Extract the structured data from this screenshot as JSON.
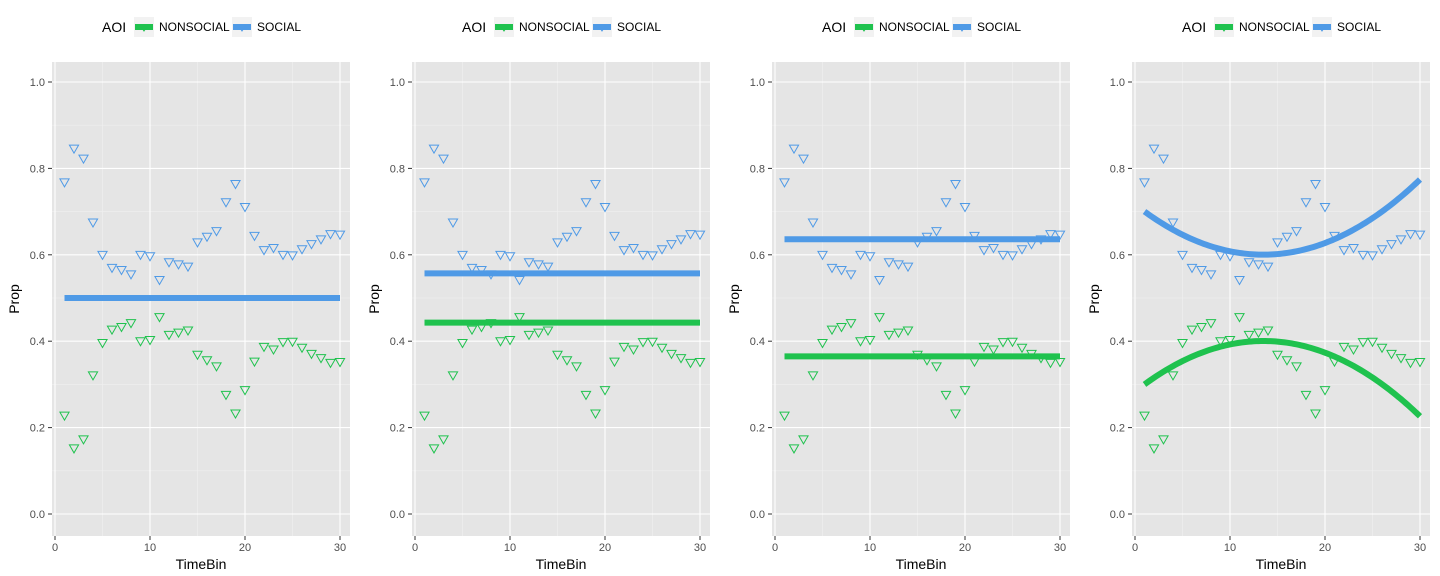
{
  "colors": {
    "nonsocial": "#1fc24e",
    "social": "#4f9ae6",
    "panel_bg": "#e5e5e5",
    "grid_major": "#ffffff",
    "grid_minor": "#f0f0f0"
  },
  "legend": {
    "title": "AOI",
    "items": [
      {
        "label": "NONSOCIAL",
        "key": "nonsocial"
      },
      {
        "label": "SOCIAL",
        "key": "social"
      }
    ]
  },
  "chart_data": [
    {
      "type": "scatter",
      "xlabel": "TimeBin",
      "ylabel": "Prop",
      "xlim": [
        0,
        31
      ],
      "ylim": [
        0,
        1
      ],
      "x_ticks": [
        0,
        10,
        20,
        30
      ],
      "y_ticks": [
        0.0,
        0.2,
        0.4,
        0.6,
        0.8,
        1.0
      ],
      "y_tick_labels": [
        "0.0",
        "0.2",
        "0.4",
        "0.6",
        "0.8",
        "1.0"
      ],
      "marker": "open-down-triangle",
      "x": [
        1,
        2,
        3,
        4,
        5,
        6,
        7,
        8,
        9,
        10,
        11,
        12,
        13,
        14,
        15,
        16,
        17,
        18,
        19,
        20,
        21,
        22,
        23,
        24,
        25,
        26,
        27,
        28,
        29,
        30
      ],
      "series": [
        {
          "name": "NONSOCIAL",
          "color_key": "nonsocial",
          "values": [
            0.228,
            0.152,
            0.173,
            0.321,
            0.396,
            0.427,
            0.433,
            0.442,
            0.4,
            0.403,
            0.456,
            0.415,
            0.42,
            0.425,
            0.369,
            0.356,
            0.342,
            0.276,
            0.233,
            0.287,
            0.353,
            0.387,
            0.381,
            0.398,
            0.399,
            0.385,
            0.371,
            0.361,
            0.35,
            0.352
          ]
        },
        {
          "name": "SOCIAL",
          "color_key": "social",
          "values": [
            0.768,
            0.846,
            0.823,
            0.675,
            0.6,
            0.57,
            0.565,
            0.555,
            0.6,
            0.597,
            0.542,
            0.583,
            0.578,
            0.573,
            0.629,
            0.642,
            0.655,
            0.722,
            0.764,
            0.711,
            0.644,
            0.611,
            0.616,
            0.6,
            0.599,
            0.613,
            0.625,
            0.636,
            0.648,
            0.647
          ]
        }
      ],
      "fits": [
        {
          "color_key": "social",
          "model": "poly",
          "coefficients": [
            0.5,
            0,
            0
          ]
        }
      ]
    },
    {
      "type": "scatter",
      "xlabel": "TimeBin",
      "ylabel": "Prop",
      "xlim": [
        0,
        31
      ],
      "ylim": [
        0,
        1
      ],
      "x_ticks": [
        0,
        10,
        20,
        30
      ],
      "y_ticks": [
        0.0,
        0.2,
        0.4,
        0.6,
        0.8,
        1.0
      ],
      "y_tick_labels": [
        "0.0",
        "0.2",
        "0.4",
        "0.6",
        "0.8",
        "1.0"
      ],
      "marker": "open-down-triangle",
      "x": [
        1,
        2,
        3,
        4,
        5,
        6,
        7,
        8,
        9,
        10,
        11,
        12,
        13,
        14,
        15,
        16,
        17,
        18,
        19,
        20,
        21,
        22,
        23,
        24,
        25,
        26,
        27,
        28,
        29,
        30
      ],
      "series": [
        {
          "name": "NONSOCIAL",
          "color_key": "nonsocial",
          "values": [
            0.228,
            0.152,
            0.173,
            0.321,
            0.396,
            0.427,
            0.433,
            0.442,
            0.4,
            0.403,
            0.456,
            0.415,
            0.42,
            0.425,
            0.369,
            0.356,
            0.342,
            0.276,
            0.233,
            0.287,
            0.353,
            0.387,
            0.381,
            0.398,
            0.399,
            0.385,
            0.371,
            0.361,
            0.35,
            0.352
          ]
        },
        {
          "name": "SOCIAL",
          "color_key": "social",
          "values": [
            0.768,
            0.846,
            0.823,
            0.675,
            0.6,
            0.57,
            0.565,
            0.555,
            0.6,
            0.597,
            0.542,
            0.583,
            0.578,
            0.573,
            0.629,
            0.642,
            0.655,
            0.722,
            0.764,
            0.711,
            0.644,
            0.611,
            0.616,
            0.6,
            0.599,
            0.613,
            0.625,
            0.636,
            0.648,
            0.647
          ]
        }
      ],
      "fits": [
        {
          "color_key": "social",
          "model": "poly",
          "coefficients": [
            0.557,
            0,
            0
          ]
        },
        {
          "color_key": "nonsocial",
          "model": "poly",
          "coefficients": [
            0.443,
            0,
            0
          ]
        }
      ]
    },
    {
      "type": "scatter",
      "xlabel": "TimeBin",
      "ylabel": "Prop",
      "xlim": [
        0,
        31
      ],
      "ylim": [
        0,
        1
      ],
      "x_ticks": [
        0,
        10,
        20,
        30
      ],
      "y_ticks": [
        0.0,
        0.2,
        0.4,
        0.6,
        0.8,
        1.0
      ],
      "y_tick_labels": [
        "0.0",
        "0.2",
        "0.4",
        "0.6",
        "0.8",
        "1.0"
      ],
      "marker": "open-down-triangle",
      "x": [
        1,
        2,
        3,
        4,
        5,
        6,
        7,
        8,
        9,
        10,
        11,
        12,
        13,
        14,
        15,
        16,
        17,
        18,
        19,
        20,
        21,
        22,
        23,
        24,
        25,
        26,
        27,
        28,
        29,
        30
      ],
      "series": [
        {
          "name": "NONSOCIAL",
          "color_key": "nonsocial",
          "values": [
            0.228,
            0.152,
            0.173,
            0.321,
            0.396,
            0.427,
            0.433,
            0.442,
            0.4,
            0.403,
            0.456,
            0.415,
            0.42,
            0.425,
            0.369,
            0.356,
            0.342,
            0.276,
            0.233,
            0.287,
            0.353,
            0.387,
            0.381,
            0.398,
            0.399,
            0.385,
            0.371,
            0.361,
            0.35,
            0.352
          ]
        },
        {
          "name": "SOCIAL",
          "color_key": "social",
          "values": [
            0.768,
            0.846,
            0.823,
            0.675,
            0.6,
            0.57,
            0.565,
            0.555,
            0.6,
            0.597,
            0.542,
            0.583,
            0.578,
            0.573,
            0.629,
            0.642,
            0.655,
            0.722,
            0.764,
            0.711,
            0.644,
            0.611,
            0.616,
            0.6,
            0.599,
            0.613,
            0.625,
            0.636,
            0.648,
            0.647
          ]
        }
      ],
      "fits": [
        {
          "color_key": "social",
          "model": "poly",
          "coefficients": [
            0.636,
            0,
            0
          ]
        },
        {
          "color_key": "nonsocial",
          "model": "poly",
          "coefficients": [
            0.365,
            0,
            0
          ]
        }
      ]
    },
    {
      "type": "scatter",
      "xlabel": "TimeBin",
      "ylabel": "Prop",
      "xlim": [
        0,
        31
      ],
      "ylim": [
        0,
        1
      ],
      "x_ticks": [
        0,
        10,
        20,
        30
      ],
      "y_ticks": [
        0.0,
        0.2,
        0.4,
        0.6,
        0.8,
        1.0
      ],
      "y_tick_labels": [
        "0.0",
        "0.2",
        "0.4",
        "0.6",
        "0.8",
        "1.0"
      ],
      "marker": "open-down-triangle",
      "x": [
        1,
        2,
        3,
        4,
        5,
        6,
        7,
        8,
        9,
        10,
        11,
        12,
        13,
        14,
        15,
        16,
        17,
        18,
        19,
        20,
        21,
        22,
        23,
        24,
        25,
        26,
        27,
        28,
        29,
        30
      ],
      "series": [
        {
          "name": "NONSOCIAL",
          "color_key": "nonsocial",
          "values": [
            0.228,
            0.152,
            0.173,
            0.321,
            0.396,
            0.427,
            0.433,
            0.442,
            0.4,
            0.403,
            0.456,
            0.415,
            0.42,
            0.425,
            0.369,
            0.356,
            0.342,
            0.276,
            0.233,
            0.287,
            0.353,
            0.387,
            0.381,
            0.398,
            0.399,
            0.385,
            0.371,
            0.361,
            0.35,
            0.352
          ]
        },
        {
          "name": "SOCIAL",
          "color_key": "social",
          "values": [
            0.768,
            0.846,
            0.823,
            0.675,
            0.6,
            0.57,
            0.565,
            0.555,
            0.6,
            0.597,
            0.542,
            0.583,
            0.578,
            0.573,
            0.629,
            0.642,
            0.655,
            0.722,
            0.764,
            0.711,
            0.644,
            0.611,
            0.616,
            0.6,
            0.599,
            0.613,
            0.625,
            0.636,
            0.648,
            0.647
          ]
        }
      ],
      "fits": [
        {
          "color_key": "social",
          "model": "poly",
          "coefficients": [
            0.7168,
            -0.01726,
            0.0006392
          ]
        },
        {
          "color_key": "nonsocial",
          "model": "poly",
          "coefficients": [
            0.2833,
            0.017335,
            -0.00064125
          ]
        }
      ]
    }
  ]
}
